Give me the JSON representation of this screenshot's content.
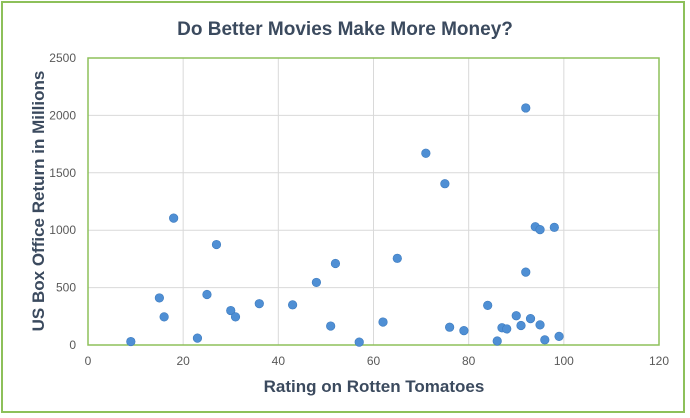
{
  "chart_data": {
    "type": "scatter",
    "title": "Do Better Movies Make More Money?",
    "xlabel": "Rating on Rotten Tomatoes",
    "ylabel": "US Box Office Return in Millions",
    "xlim": [
      0,
      120
    ],
    "ylim": [
      0,
      2500
    ],
    "xticks": [
      "0",
      "20",
      "40",
      "60",
      "80",
      "100",
      "120"
    ],
    "yticks": [
      "0",
      "500",
      "1000",
      "1500",
      "2000",
      "2500"
    ],
    "grid": true,
    "legend": "none",
    "series": [
      {
        "color": "#4f8fd4",
        "points": [
          {
            "x": 9,
            "y": 30
          },
          {
            "x": 15,
            "y": 410
          },
          {
            "x": 16,
            "y": 245
          },
          {
            "x": 18,
            "y": 1105
          },
          {
            "x": 23,
            "y": 60
          },
          {
            "x": 25,
            "y": 440
          },
          {
            "x": 27,
            "y": 875
          },
          {
            "x": 30,
            "y": 300
          },
          {
            "x": 31,
            "y": 245
          },
          {
            "x": 36,
            "y": 360
          },
          {
            "x": 43,
            "y": 350
          },
          {
            "x": 48,
            "y": 545
          },
          {
            "x": 51,
            "y": 165
          },
          {
            "x": 52,
            "y": 710
          },
          {
            "x": 57,
            "y": 25
          },
          {
            "x": 62,
            "y": 200
          },
          {
            "x": 65,
            "y": 755
          },
          {
            "x": 71,
            "y": 1670
          },
          {
            "x": 75,
            "y": 1405
          },
          {
            "x": 76,
            "y": 155
          },
          {
            "x": 79,
            "y": 125
          },
          {
            "x": 84,
            "y": 345
          },
          {
            "x": 86,
            "y": 35
          },
          {
            "x": 87,
            "y": 150
          },
          {
            "x": 88,
            "y": 140
          },
          {
            "x": 90,
            "y": 255
          },
          {
            "x": 91,
            "y": 170
          },
          {
            "x": 92,
            "y": 635
          },
          {
            "x": 92,
            "y": 2065
          },
          {
            "x": 93,
            "y": 230
          },
          {
            "x": 94,
            "y": 1030
          },
          {
            "x": 95,
            "y": 1005
          },
          {
            "x": 95,
            "y": 175
          },
          {
            "x": 96,
            "y": 45
          },
          {
            "x": 98,
            "y": 1025
          },
          {
            "x": 99,
            "y": 75
          }
        ]
      }
    ]
  }
}
